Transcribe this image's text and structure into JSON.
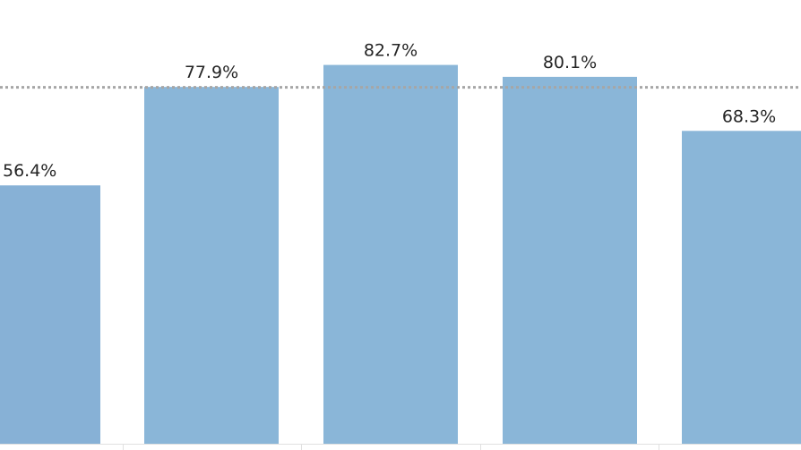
{
  "chart_data": {
    "type": "bar",
    "categories": [
      "",
      "",
      "",
      "",
      ""
    ],
    "values": [
      56.4,
      77.9,
      82.7,
      80.1,
      68.3
    ],
    "value_labels": [
      "56.4%",
      "77.9%",
      "82.7%",
      "80.1%",
      "68.3%"
    ],
    "reference_line": 77.9,
    "ylim": [
      0,
      100
    ],
    "grid": false,
    "colors": {
      "bar": "#8ab6d8",
      "bar_first": "#87b1d6",
      "reference_line": "#a6a6a6",
      "axis": "#e0e0e0"
    }
  }
}
